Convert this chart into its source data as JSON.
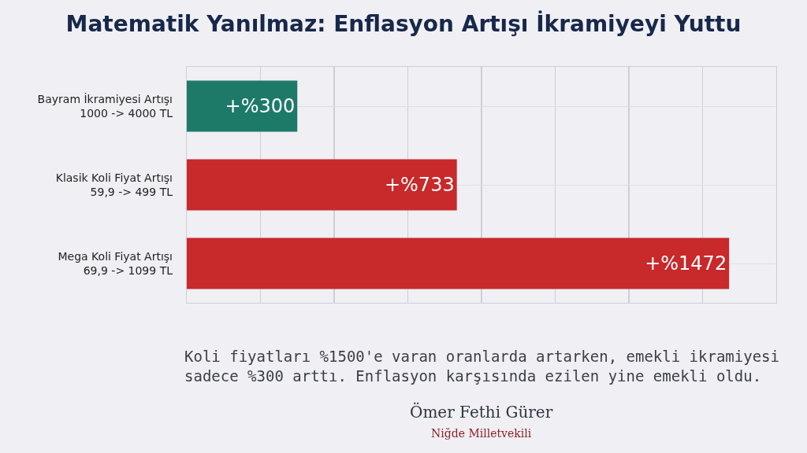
{
  "chart_data": {
    "type": "bar",
    "orientation": "horizontal",
    "title": "Matematik Yanılmaz: Enflasyon Artışı İkramiyeyi Yuttu",
    "categories": [
      "Bayram İkramiyesi Artışı\n1000 -> 4000 TL",
      "Klasik Koli Fiyat Artışı\n59,9 -> 499 TL",
      "Mega Koli Fiyat Artışı\n69,9 -> 1099 TL"
    ],
    "values": [
      300,
      733,
      1472
    ],
    "colors": [
      "#1e7a68",
      "#c8292b",
      "#c8292b"
    ],
    "value_labels": [
      "+%300",
      "+%733",
      "+%1472"
    ],
    "xlim": [
      0,
      1600
    ],
    "xticks": [
      {
        "value": 200,
        "label": null
      },
      {
        "value": 400,
        "label": null
      },
      {
        "value": 600,
        "label": null
      },
      {
        "value": 800,
        "label": null
      },
      {
        "value": 1000,
        "label": null
      },
      {
        "value": 1200,
        "label": null
      },
      {
        "value": 1400,
        "label": null
      }
    ],
    "grid": true,
    "tick_labels": "y",
    "annotations": [
      "Koli fiyatları %1500'e varan oranlarda artarken, emekli ikramiyesi\nsadece %300 arttı. Enflasyon karşısında ezilen yine emekli oldu.",
      "Ömer Fethi Gürer",
      "Niğde Milletvekili"
    ]
  }
}
